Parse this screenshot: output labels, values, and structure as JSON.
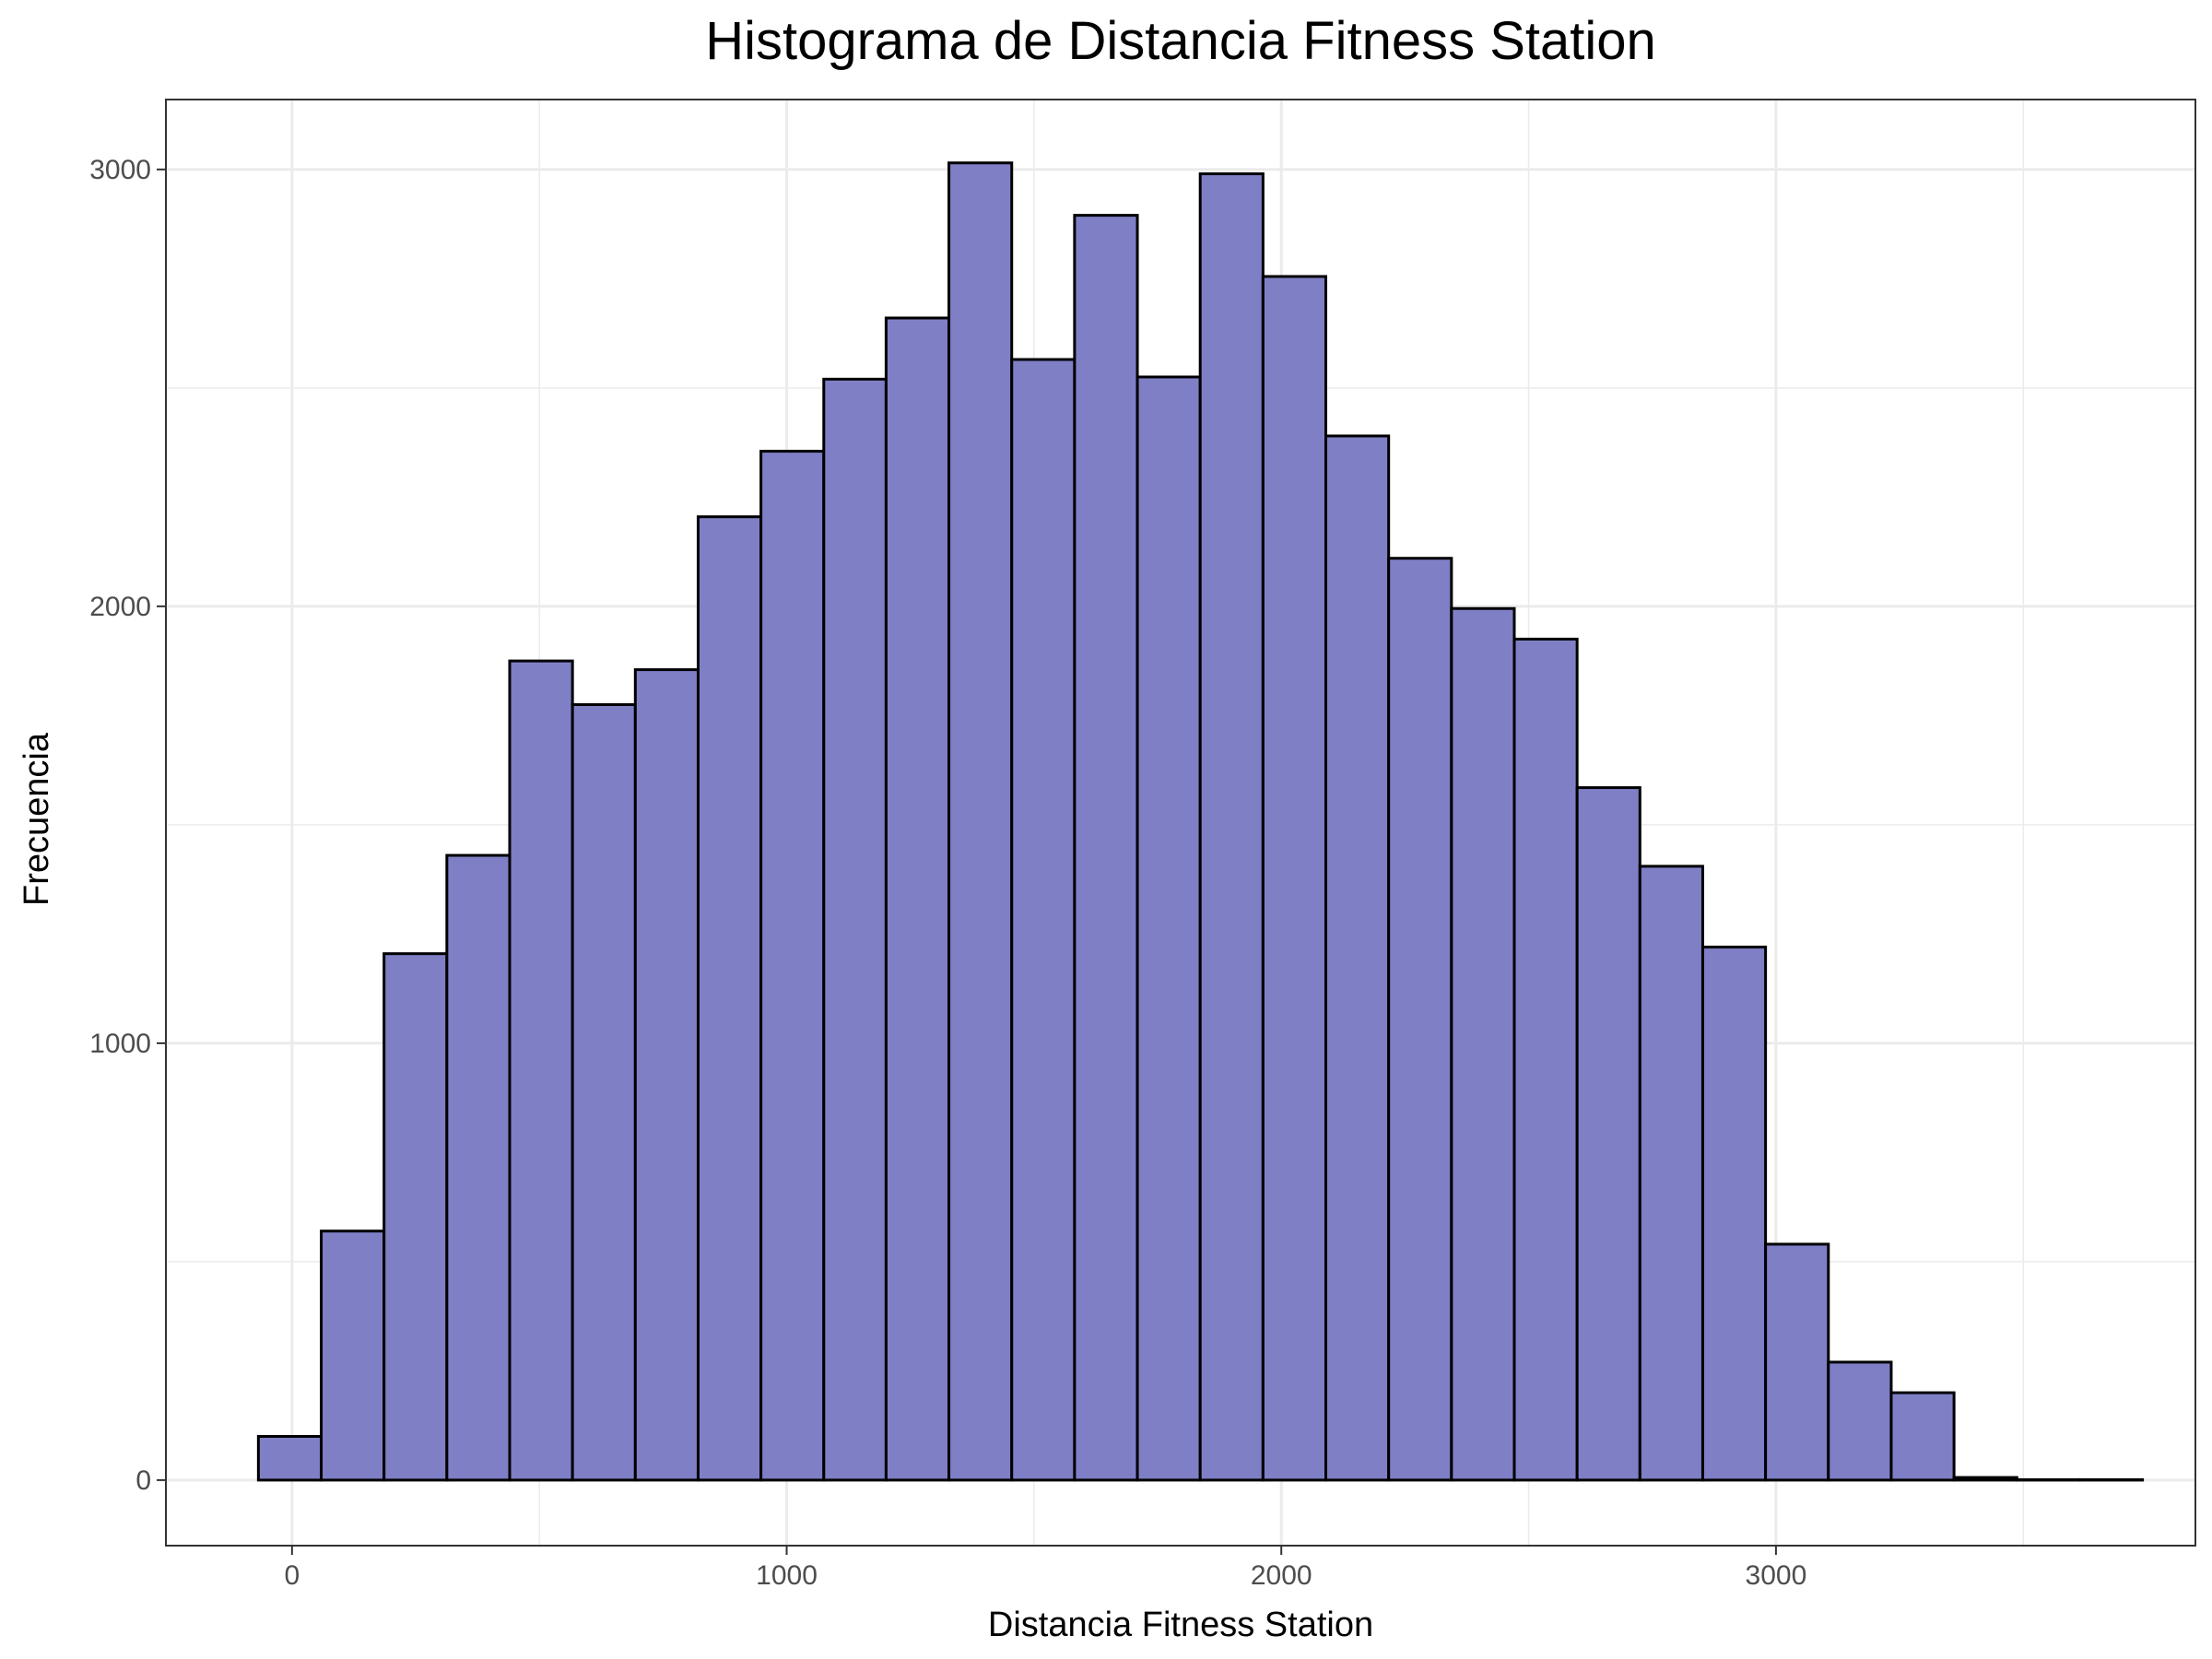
{
  "chart_data": {
    "type": "histogram",
    "title": "Histograma de Distancia Fitness Station",
    "xlabel": "Distancia Fitness Station",
    "ylabel": "Frecuencia",
    "xlim": [
      -255,
      3848
    ],
    "ylim": [
      -150,
      3160
    ],
    "x_ticks": [
      0,
      1000,
      2000,
      3000
    ],
    "y_ticks": [
      0,
      1000,
      2000,
      3000
    ],
    "x_minor": [
      500,
      1500,
      2500,
      3500
    ],
    "y_minor": [
      500,
      1500,
      2500
    ],
    "grid": true,
    "bin_width": 126.9,
    "bins": [
      {
        "x0": -68,
        "x1": 59,
        "count": 100
      },
      {
        "x0": 59,
        "x1": 186,
        "count": 570
      },
      {
        "x0": 186,
        "x1": 313,
        "count": 1205
      },
      {
        "x0": 313,
        "x1": 440,
        "count": 1430
      },
      {
        "x0": 440,
        "x1": 567,
        "count": 1875
      },
      {
        "x0": 567,
        "x1": 694,
        "count": 1775
      },
      {
        "x0": 694,
        "x1": 821,
        "count": 1855
      },
      {
        "x0": 821,
        "x1": 948,
        "count": 2205
      },
      {
        "x0": 948,
        "x1": 1075,
        "count": 2355
      },
      {
        "x0": 1075,
        "x1": 1201,
        "count": 2520
      },
      {
        "x0": 1201,
        "x1": 1328,
        "count": 2660
      },
      {
        "x0": 1328,
        "x1": 1455,
        "count": 3015
      },
      {
        "x0": 1455,
        "x1": 1582,
        "count": 2565
      },
      {
        "x0": 1582,
        "x1": 1709,
        "count": 2895
      },
      {
        "x0": 1709,
        "x1": 1836,
        "count": 2525
      },
      {
        "x0": 1836,
        "x1": 1963,
        "count": 2990
      },
      {
        "x0": 1963,
        "x1": 2090,
        "count": 2755
      },
      {
        "x0": 2090,
        "x1": 2217,
        "count": 2390
      },
      {
        "x0": 2217,
        "x1": 2344,
        "count": 2110
      },
      {
        "x0": 2344,
        "x1": 2471,
        "count": 1995
      },
      {
        "x0": 2471,
        "x1": 2598,
        "count": 1925
      },
      {
        "x0": 2598,
        "x1": 2725,
        "count": 1585
      },
      {
        "x0": 2725,
        "x1": 2852,
        "count": 1405
      },
      {
        "x0": 2852,
        "x1": 2979,
        "count": 1220
      },
      {
        "x0": 2979,
        "x1": 3106,
        "count": 540
      },
      {
        "x0": 3106,
        "x1": 3233,
        "count": 270
      },
      {
        "x0": 3233,
        "x1": 3360,
        "count": 200
      },
      {
        "x0": 3360,
        "x1": 3487,
        "count": 6
      },
      {
        "x0": 3487,
        "x1": 3614,
        "count": 1
      },
      {
        "x0": 3614,
        "x1": 3741,
        "count": 1
      }
    ],
    "bar_fill": "#7f7fc6",
    "bar_stroke": "#000000",
    "grid_color": "#ebebeb",
    "panel_border_color": "#333333"
  }
}
